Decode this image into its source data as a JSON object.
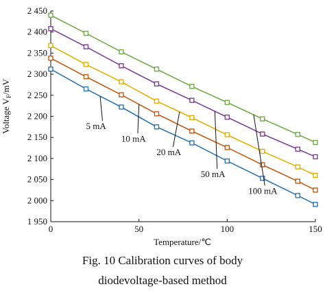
{
  "chart_data": {
    "type": "line",
    "xlabel_text": "Temperature/℃",
    "ylabel_text": "Voltage V",
    "ylabel_sub": "F",
    "ylabel_unit": "/mV",
    "xlim": [
      0,
      150
    ],
    "ylim": [
      1950,
      2450
    ],
    "x_ticks": [
      0,
      50,
      100,
      150
    ],
    "x_tick_labels": [
      "0",
      "50",
      "100",
      "150"
    ],
    "y_ticks": [
      1950,
      2000,
      2050,
      2100,
      2150,
      2200,
      2250,
      2300,
      2350,
      2400,
      2450
    ],
    "y_tick_labels": [
      "1 950",
      "2 000",
      "2 050",
      "2 100",
      "2 150",
      "2 200",
      "2 250",
      "2 300",
      "2 350",
      "2 400",
      "2 450"
    ],
    "grid": false,
    "x": [
      0,
      20,
      40,
      60,
      80,
      100,
      120,
      140,
      150
    ],
    "series": [
      {
        "name": "5 mA",
        "color": "#2e75b6",
        "values": [
          2312,
          2265,
          2222,
          2175,
          2137,
          2094,
          2053,
          2012,
          1991
        ]
      },
      {
        "name": "10 mA",
        "color": "#c55a11",
        "values": [
          2338,
          2294,
          2251,
          2206,
          2165,
          2126,
          2085,
          2046,
          2025
        ]
      },
      {
        "name": "20 mA",
        "color": "#e6b000",
        "values": [
          2368,
          2323,
          2282,
          2236,
          2197,
          2156,
          2117,
          2080,
          2060
        ]
      },
      {
        "name": "50 mA",
        "color": "#7f3f98",
        "values": [
          2408,
          2365,
          2320,
          2277,
          2238,
          2198,
          2158,
          2122,
          2104
        ]
      },
      {
        "name": "100 mA",
        "color": "#70ad47",
        "values": [
          2440,
          2397,
          2353,
          2312,
          2271,
          2233,
          2194,
          2157,
          2138
        ]
      }
    ],
    "annotations": [
      {
        "label": "5 mA",
        "series": 0,
        "at_x": 28,
        "text_x": 20,
        "text_y": 2170
      },
      {
        "label": "10 mA",
        "series": 1,
        "at_x": 50,
        "text_x": 40,
        "text_y": 2140
      },
      {
        "label": "20 mA",
        "series": 2,
        "at_x": 73,
        "text_x": 60,
        "text_y": 2108
      },
      {
        "label": "50 mA",
        "series": 3,
        "at_x": 93,
        "text_x": 85,
        "text_y": 2056
      },
      {
        "label": "100 mA",
        "series": 4,
        "at_x": 115,
        "text_x": 112,
        "text_y": 2016
      }
    ]
  },
  "caption": {
    "line1": "Fig. 10    Calibration curves of body",
    "line2": "diodevoltage-based method"
  }
}
